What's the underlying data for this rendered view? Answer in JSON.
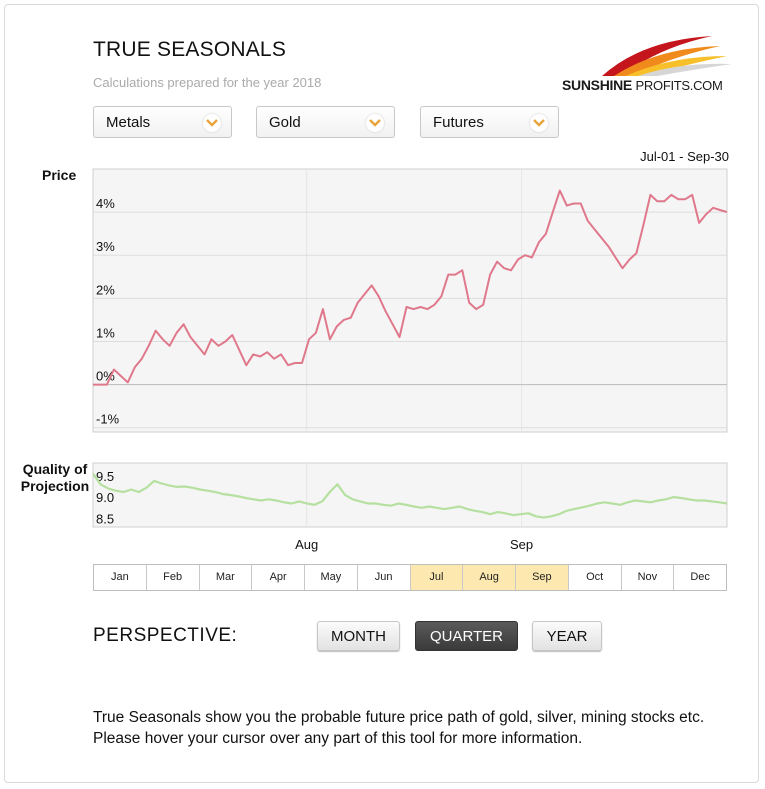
{
  "header": {
    "title": "TRUE SEASONALS",
    "subtitle": "Calculations prepared for the year 2018",
    "logo_text_a": "SUNSHINE",
    "logo_text_b": "PROFITS.COM"
  },
  "selectors": [
    {
      "value": "Metals"
    },
    {
      "value": "Gold"
    },
    {
      "value": "Futures"
    }
  ],
  "date_range": "Jul-01 - Sep-30",
  "price_label": "Price",
  "quality_label_line1": "Quality of",
  "quality_label_line2": "Projection",
  "months": [
    {
      "label": "Jan",
      "selected": false
    },
    {
      "label": "Feb",
      "selected": false
    },
    {
      "label": "Mar",
      "selected": false
    },
    {
      "label": "Apr",
      "selected": false
    },
    {
      "label": "May",
      "selected": false
    },
    {
      "label": "Jun",
      "selected": false
    },
    {
      "label": "Jul",
      "selected": true
    },
    {
      "label": "Aug",
      "selected": true
    },
    {
      "label": "Sep",
      "selected": true
    },
    {
      "label": "Oct",
      "selected": false
    },
    {
      "label": "Nov",
      "selected": false
    },
    {
      "label": "Dec",
      "selected": false
    }
  ],
  "perspective": {
    "label": "PERSPECTIVE:",
    "buttons": [
      "MONTH",
      "QUARTER",
      "YEAR"
    ],
    "active": "QUARTER"
  },
  "description": "True Seasonals show you the probable future price path of gold, silver, mining stocks etc. Please hover your cursor over any part of this tool for more information.",
  "colors": {
    "price_line": "#e0788c",
    "quality_line": "#b5e0a0",
    "selected_month": "#fde9b0",
    "grid": "#dddddd",
    "plot_bg": "#f5f5f5"
  },
  "chart_data": [
    {
      "type": "line",
      "name": "price",
      "ylabel": "Price",
      "ylim": [
        -1.1,
        5.0
      ],
      "y_ticks": [
        "4%",
        "3%",
        "2%",
        "1%",
        "0%",
        "-1%"
      ],
      "y_tick_values": [
        4,
        3,
        2,
        1,
        0,
        -1
      ],
      "x_ticks": [
        "Aug",
        "Sep"
      ],
      "x_tick_positions": [
        0.337,
        0.676
      ],
      "series": [
        {
          "values": [
            0.0,
            0.0,
            0.0,
            0.35,
            0.2,
            0.05,
            0.4,
            0.6,
            0.9,
            1.25,
            1.05,
            0.9,
            1.2,
            1.4,
            1.1,
            0.9,
            0.7,
            1.05,
            0.9,
            1.0,
            1.15,
            0.8,
            0.45,
            0.7,
            0.65,
            0.75,
            0.6,
            0.7,
            0.45,
            0.5,
            0.5,
            1.05,
            1.2,
            1.75,
            1.05,
            1.35,
            1.5,
            1.55,
            1.9,
            2.1,
            2.3,
            2.05,
            1.7,
            1.4,
            1.1,
            1.8,
            1.75,
            1.8,
            1.75,
            1.85,
            2.05,
            2.55,
            2.55,
            2.65,
            1.9,
            1.75,
            1.85,
            2.55,
            2.85,
            2.7,
            2.65,
            2.9,
            3.0,
            2.95,
            3.3,
            3.5,
            4.0,
            4.5,
            4.15,
            4.2,
            4.2,
            3.8,
            3.6,
            3.4,
            3.2,
            2.95,
            2.7,
            2.9,
            3.05,
            3.7,
            4.4,
            4.25,
            4.25,
            4.4,
            4.3,
            4.3,
            4.4,
            3.75,
            3.95,
            4.1,
            4.05,
            4.0
          ]
        }
      ]
    },
    {
      "type": "line",
      "name": "quality",
      "ylabel": "Quality of Projection",
      "ylim": [
        8.3,
        9.8
      ],
      "y_ticks": [
        "9.5",
        "9.0",
        "8.5"
      ],
      "y_tick_values": [
        9.5,
        9.0,
        8.5
      ],
      "series": [
        {
          "values": [
            9.55,
            9.3,
            9.2,
            9.15,
            9.12,
            9.18,
            9.12,
            9.22,
            9.38,
            9.32,
            9.27,
            9.24,
            9.25,
            9.22,
            9.18,
            9.15,
            9.12,
            9.07,
            9.05,
            9.02,
            8.98,
            8.95,
            8.92,
            8.95,
            8.92,
            8.88,
            8.85,
            8.9,
            8.85,
            8.82,
            8.9,
            9.12,
            9.3,
            9.05,
            8.95,
            8.9,
            8.85,
            8.85,
            8.82,
            8.8,
            8.85,
            8.82,
            8.78,
            8.75,
            8.78,
            8.75,
            8.72,
            8.75,
            8.78,
            8.72,
            8.68,
            8.65,
            8.6,
            8.65,
            8.62,
            8.58,
            8.6,
            8.62,
            8.55,
            8.52,
            8.55,
            8.6,
            8.68,
            8.72,
            8.76,
            8.8,
            8.85,
            8.88,
            8.85,
            8.82,
            8.88,
            8.92,
            8.9,
            8.88,
            8.92,
            8.95,
            9.0,
            8.98,
            8.95,
            8.92,
            8.92,
            8.9,
            8.88,
            8.85
          ]
        }
      ]
    }
  ]
}
